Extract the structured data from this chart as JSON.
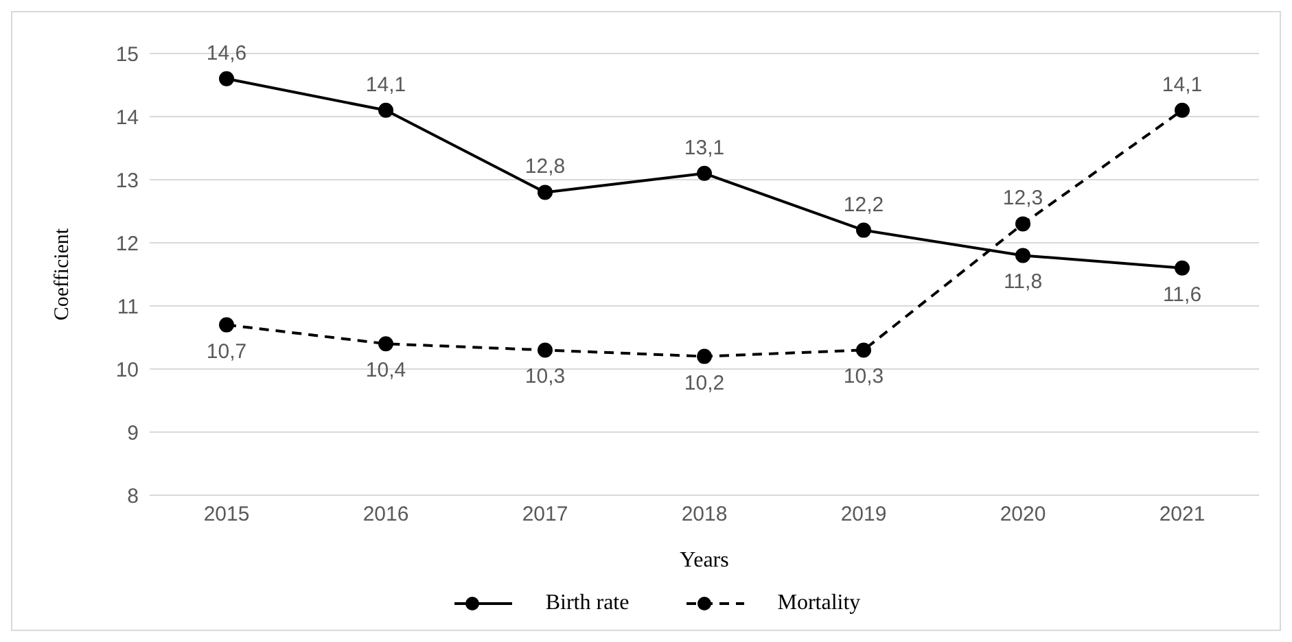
{
  "chart_data": {
    "type": "line",
    "xlabel": "Years",
    "ylabel": "Coefficient",
    "categories": [
      "2015",
      "2016",
      "2017",
      "2018",
      "2019",
      "2020",
      "2021"
    ],
    "series": [
      {
        "name": "Birth rate",
        "color": "#000000",
        "line_style": "solid",
        "values": [
          14.6,
          14.1,
          12.8,
          13.1,
          12.2,
          11.8,
          11.6
        ],
        "value_labels": [
          "14,6",
          "14,1",
          "12,8",
          "13,1",
          "12,2",
          "11,8",
          "11,6"
        ]
      },
      {
        "name": "Mortality",
        "color": "#000000",
        "line_style": "dashed",
        "values": [
          10.7,
          10.4,
          10.3,
          10.2,
          10.3,
          12.3,
          14.1
        ],
        "value_labels": [
          "10,7",
          "10,4",
          "10,3",
          "10,2",
          "10,3",
          "12,3",
          "14,1"
        ]
      }
    ],
    "ylim": [
      8,
      15
    ],
    "yticks": [
      8,
      9,
      10,
      11,
      12,
      13,
      14,
      15
    ],
    "grid": "y",
    "legend": "bottom",
    "marker": "circle"
  }
}
